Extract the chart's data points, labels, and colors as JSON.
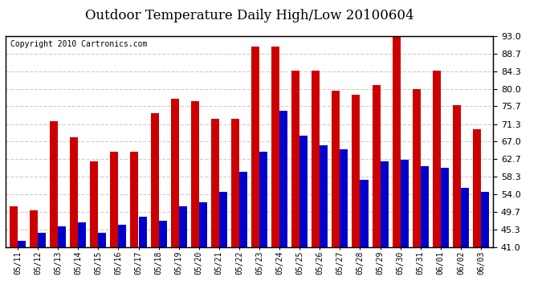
{
  "title": "Outdoor Temperature Daily High/Low 20100604",
  "copyright": "Copyright 2010 Cartronics.com",
  "dates": [
    "05/11",
    "05/12",
    "05/13",
    "05/14",
    "05/15",
    "05/16",
    "05/17",
    "05/18",
    "05/19",
    "05/20",
    "05/21",
    "05/22",
    "05/23",
    "05/24",
    "05/25",
    "05/26",
    "05/27",
    "05/28",
    "05/29",
    "05/30",
    "05/31",
    "06/01",
    "06/02",
    "06/03"
  ],
  "highs": [
    51.0,
    50.0,
    72.0,
    68.0,
    62.0,
    64.5,
    64.5,
    74.0,
    77.5,
    77.0,
    72.5,
    72.5,
    90.5,
    90.5,
    84.5,
    84.5,
    79.5,
    78.5,
    81.0,
    93.5,
    80.0,
    84.5,
    76.0,
    70.0
  ],
  "lows": [
    42.5,
    44.5,
    46.0,
    47.0,
    44.5,
    46.5,
    48.5,
    47.5,
    51.0,
    52.0,
    54.5,
    59.5,
    64.5,
    74.5,
    68.5,
    66.0,
    65.0,
    57.5,
    62.0,
    62.5,
    61.0,
    60.5,
    55.5,
    54.5
  ],
  "high_color": "#cc0000",
  "low_color": "#0000cc",
  "bg_color": "#ffffff",
  "grid_color": "#cccccc",
  "ylim": [
    41.0,
    93.0
  ],
  "yticks": [
    41.0,
    45.3,
    49.7,
    54.0,
    58.3,
    62.7,
    67.0,
    71.3,
    75.7,
    80.0,
    84.3,
    88.7,
    93.0
  ],
  "title_fontsize": 12,
  "copyright_fontsize": 7,
  "bar_width": 0.4
}
